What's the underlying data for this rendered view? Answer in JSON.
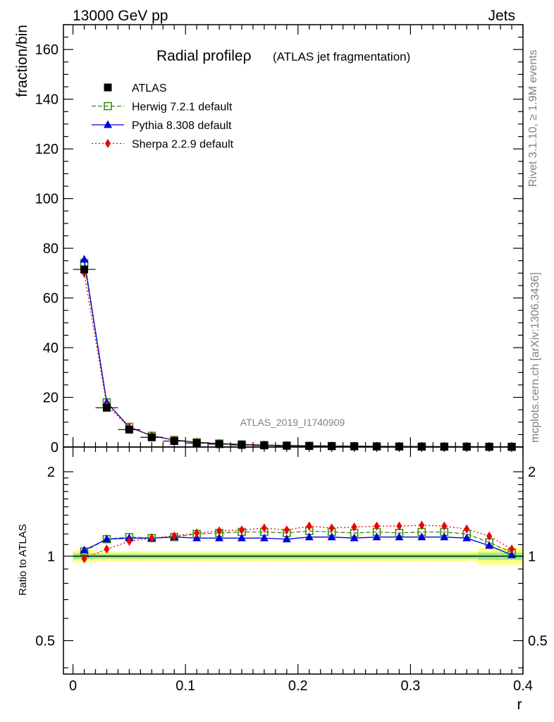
{
  "header": {
    "energy_label": "13000 GeV pp",
    "category": "Jets",
    "side_label_top": "Rivet 3.1.10, ≥ 1.9M events",
    "side_label_bottom": "mcplots.cern.ch [arXiv:1306.3436]",
    "watermark": "ATLAS_2019_I1740909"
  },
  "colors": {
    "herwig": "#3a8c10",
    "pythia": "#0000dd",
    "sherpa": "#ee0000",
    "data": "#000000",
    "band_inner": "#99ee88",
    "band_outer": "#ffff88"
  },
  "chart_data": [
    {
      "type": "line",
      "title": "Radial profileρ",
      "title_suffix": "(ATLAS jet fragmentation)",
      "xlabel": "r",
      "ylabel": "fraction/bin",
      "xlim": [
        -0.0085,
        0.4
      ],
      "ylim": [
        0,
        170
      ],
      "yticks": [
        0,
        20,
        40,
        60,
        80,
        100,
        120,
        140,
        160
      ],
      "x": [
        0.01,
        0.03,
        0.05,
        0.07,
        0.09,
        0.11,
        0.13,
        0.15,
        0.17,
        0.19,
        0.21,
        0.23,
        0.25,
        0.27,
        0.29,
        0.31,
        0.33,
        0.35,
        0.37,
        0.39
      ],
      "legend": [
        {
          "name": "ATLAS",
          "marker": "square-filled",
          "line": "none"
        },
        {
          "name": "Herwig 7.2.1 default",
          "marker": "square-open",
          "line": "dashed"
        },
        {
          "name": "Pythia 8.308 default",
          "marker": "triangle",
          "line": "solid"
        },
        {
          "name": "Sherpa 2.2.9 default",
          "marker": "diamond",
          "line": "dotted"
        }
      ],
      "series": [
        {
          "name": "ATLAS",
          "values": [
            71.5,
            15.8,
            7.0,
            3.9,
            2.4,
            1.6,
            1.15,
            0.85,
            0.65,
            0.5,
            0.4,
            0.33,
            0.27,
            0.22,
            0.18,
            0.15,
            0.13,
            0.11,
            0.09,
            0.07
          ]
        },
        {
          "name": "Herwig 7.2.1 default",
          "values": [
            74.0,
            18.0,
            8.1,
            4.5,
            2.8,
            1.9,
            1.4,
            1.05,
            0.8,
            0.6,
            0.49,
            0.4,
            0.33,
            0.27,
            0.22,
            0.18,
            0.16,
            0.13,
            0.1,
            0.072
          ]
        },
        {
          "name": "Pythia 8.308 default",
          "values": [
            75.5,
            18.0,
            8.0,
            4.5,
            2.8,
            1.85,
            1.33,
            0.98,
            0.75,
            0.57,
            0.47,
            0.38,
            0.31,
            0.26,
            0.21,
            0.18,
            0.15,
            0.13,
            0.098,
            0.07
          ]
        },
        {
          "name": "Sherpa 2.2.9 default",
          "values": [
            70.0,
            16.8,
            7.9,
            4.5,
            2.85,
            1.95,
            1.43,
            1.07,
            0.83,
            0.62,
            0.51,
            0.41,
            0.34,
            0.28,
            0.23,
            0.19,
            0.17,
            0.14,
            0.106,
            0.074
          ]
        }
      ]
    },
    {
      "type": "line",
      "ylabel": "Ratio to ATLAS",
      "xlabel": "r",
      "yscale": "log",
      "xlim": [
        -0.0085,
        0.4
      ],
      "ylim": [
        0.38,
        2.45
      ],
      "yticks": [
        0.5,
        1,
        2
      ],
      "ytick_labels": [
        "0.5",
        "1",
        "2"
      ],
      "xticks": [
        0,
        0.1,
        0.2,
        0.3,
        0.4
      ],
      "xtick_labels": [
        "0",
        "0.1",
        "0.2",
        "0.3",
        "0.4"
      ],
      "x": [
        0.01,
        0.03,
        0.05,
        0.07,
        0.09,
        0.11,
        0.13,
        0.15,
        0.17,
        0.19,
        0.21,
        0.23,
        0.25,
        0.27,
        0.29,
        0.31,
        0.33,
        0.35,
        0.37,
        0.39
      ],
      "band_inner": [
        0.025,
        0.02,
        0.02,
        0.02,
        0.02,
        0.02,
        0.02,
        0.02,
        0.02,
        0.02,
        0.02,
        0.02,
        0.02,
        0.02,
        0.02,
        0.02,
        0.02,
        0.02,
        0.03,
        0.03
      ],
      "band_outer": [
        0.05,
        0.04,
        0.04,
        0.04,
        0.04,
        0.04,
        0.04,
        0.04,
        0.04,
        0.04,
        0.04,
        0.04,
        0.04,
        0.04,
        0.04,
        0.04,
        0.04,
        0.04,
        0.07,
        0.07
      ],
      "series": [
        {
          "name": "Herwig 7.2.1 default",
          "values": [
            1.04,
            1.15,
            1.17,
            1.16,
            1.17,
            1.2,
            1.21,
            1.22,
            1.22,
            1.21,
            1.23,
            1.22,
            1.21,
            1.22,
            1.21,
            1.22,
            1.22,
            1.2,
            1.12,
            1.03
          ]
        },
        {
          "name": "Pythia 8.308 default",
          "values": [
            1.05,
            1.15,
            1.16,
            1.16,
            1.17,
            1.16,
            1.16,
            1.16,
            1.16,
            1.15,
            1.17,
            1.17,
            1.16,
            1.17,
            1.17,
            1.17,
            1.17,
            1.16,
            1.09,
            1.01
          ]
        },
        {
          "name": "Sherpa 2.2.9 default",
          "values": [
            0.98,
            1.06,
            1.13,
            1.16,
            1.18,
            1.21,
            1.23,
            1.24,
            1.26,
            1.24,
            1.28,
            1.26,
            1.27,
            1.28,
            1.28,
            1.29,
            1.28,
            1.25,
            1.18,
            1.06
          ]
        }
      ]
    }
  ],
  "top_xticks": [
    0,
    0.1,
    0.2,
    0.3,
    0.4
  ]
}
